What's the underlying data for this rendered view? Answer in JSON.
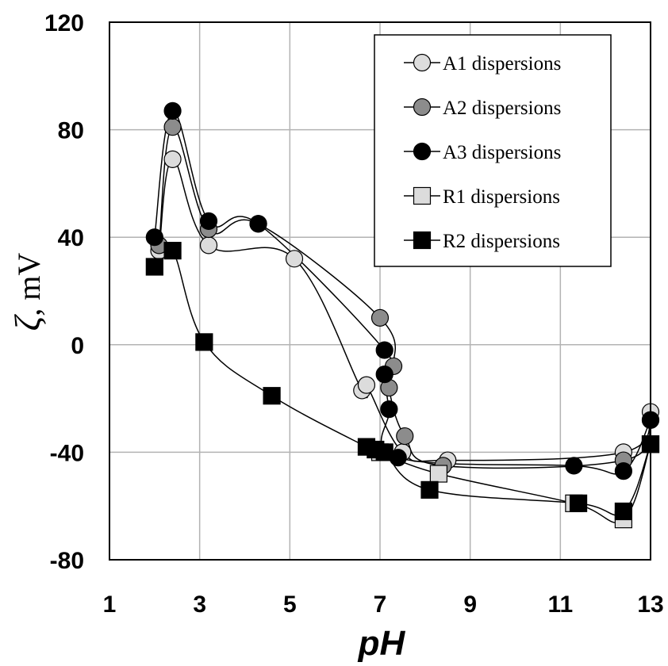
{
  "chart_data": {
    "type": "scatter",
    "title": "",
    "xlabel": "pH",
    "ylabel_symbol": "ζ",
    "ylabel_unit": ", mV",
    "xlim": [
      1,
      13
    ],
    "ylim": [
      -80,
      120
    ],
    "x_ticks": [
      "1",
      "3",
      "5",
      "7",
      "9",
      "11",
      "13"
    ],
    "y_ticks": [
      "-80",
      "-40",
      "0",
      "40",
      "80",
      "120"
    ],
    "grid": true,
    "legend_position": "top-right",
    "series": [
      {
        "name": "A1 dispersions",
        "marker": "circle",
        "fill": "#dcdcdc",
        "points": [
          [
            2.1,
            35
          ],
          [
            2.4,
            69
          ],
          [
            3.2,
            37
          ],
          [
            5.1,
            32
          ],
          [
            6.6,
            -17
          ],
          [
            6.7,
            -15
          ],
          [
            7.5,
            -40
          ],
          [
            8.5,
            -43
          ],
          [
            12.4,
            -40
          ],
          [
            13.0,
            -25
          ]
        ]
      },
      {
        "name": "A2 dispersions",
        "marker": "circle",
        "fill": "#8c8c8c",
        "points": [
          [
            2.1,
            37
          ],
          [
            2.4,
            81
          ],
          [
            3.2,
            43
          ],
          [
            4.3,
            45
          ],
          [
            7.0,
            10
          ],
          [
            7.3,
            -8
          ],
          [
            7.2,
            -16
          ],
          [
            7.55,
            -34
          ],
          [
            8.4,
            -45
          ],
          [
            12.4,
            -43
          ],
          [
            13.0,
            -28
          ]
        ]
      },
      {
        "name": "A3 dispersions",
        "marker": "circle",
        "fill": "#000000",
        "points": [
          [
            2.0,
            40
          ],
          [
            2.4,
            87
          ],
          [
            3.2,
            46
          ],
          [
            4.3,
            45
          ],
          [
            7.1,
            -2
          ],
          [
            7.1,
            -11
          ],
          [
            7.2,
            -24
          ],
          [
            7.4,
            -42
          ],
          [
            11.3,
            -45
          ],
          [
            12.4,
            -47
          ],
          [
            13.0,
            -28
          ]
        ]
      },
      {
        "name": "R1 dispersions",
        "marker": "square",
        "fill": "#dcdcdc",
        "points": [
          [
            7.0,
            -40
          ],
          [
            8.3,
            -48
          ],
          [
            11.3,
            -59
          ],
          [
            12.4,
            -65
          ],
          [
            13.0,
            -37
          ]
        ]
      },
      {
        "name": "R2 dispersions",
        "marker": "square",
        "fill": "#000000",
        "points": [
          [
            2.0,
            29
          ],
          [
            2.4,
            35
          ],
          [
            3.1,
            1
          ],
          [
            4.6,
            -19
          ],
          [
            6.7,
            -38
          ],
          [
            6.9,
            -39
          ],
          [
            7.1,
            -40
          ],
          [
            8.1,
            -54
          ],
          [
            11.4,
            -59
          ],
          [
            12.4,
            -62
          ],
          [
            13.0,
            -37
          ]
        ]
      }
    ]
  }
}
